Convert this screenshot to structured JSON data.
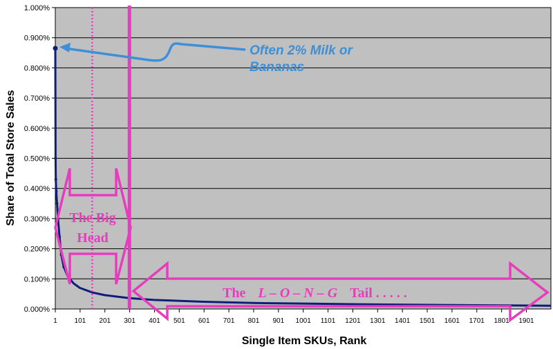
{
  "chart_data": {
    "type": "line",
    "title": "",
    "xlabel": "Single Item SKUs, Rank",
    "ylabel": "Share of Total Store Sales",
    "xlim": [
      1,
      2000
    ],
    "ylim": [
      0,
      1.0
    ],
    "y_tick_labels": [
      "0.000%",
      "0.100%",
      "0.200%",
      "0.300%",
      "0.400%",
      "0.500%",
      "0.600%",
      "0.700%",
      "0.800%",
      "0.900%",
      "1.000%"
    ],
    "y_tick_values": [
      0,
      0.1,
      0.2,
      0.3,
      0.4,
      0.5,
      0.6,
      0.7,
      0.8,
      0.9,
      1.0
    ],
    "x_tick_labels": [
      "1",
      "101",
      "201",
      "301",
      "401",
      "501",
      "601",
      "701",
      "801",
      "901",
      "1001",
      "1101",
      "1201",
      "1301",
      "1401",
      "1501",
      "1601",
      "1701",
      "1801",
      "1901"
    ],
    "x_tick_values": [
      1,
      101,
      201,
      301,
      401,
      501,
      601,
      701,
      801,
      901,
      1001,
      1101,
      1201,
      1301,
      1401,
      1501,
      1601,
      1701,
      1801,
      1901
    ],
    "grid": true,
    "series": [
      {
        "color": "#0d1e78",
        "x": [
          1,
          2,
          3,
          5,
          8,
          12,
          18,
          25,
          35,
          50,
          75,
          100,
          150,
          200,
          300,
          400,
          600,
          800,
          1000,
          1300,
          1600,
          2000
        ],
        "y": [
          0.865,
          0.5,
          0.43,
          0.39,
          0.35,
          0.3,
          0.24,
          0.18,
          0.14,
          0.11,
          0.085,
          0.07,
          0.055,
          0.046,
          0.036,
          0.03,
          0.024,
          0.02,
          0.018,
          0.015,
          0.013,
          0.011
        ]
      }
    ],
    "reference_lines": [
      {
        "x": 150,
        "style": "dotted",
        "color": "#e83cbf"
      },
      {
        "x": 300,
        "style": "solid",
        "color": "#e83cbf"
      }
    ],
    "annotations": {
      "milk_line1": "Often 2% Milk or",
      "milk_line2": "Bananas",
      "head_line1": "The Big",
      "head_line2": "Head",
      "tail_the": "The",
      "tail_long": "L – O – N – G",
      "tail_word": "Tail . . . . ."
    },
    "colors": {
      "plot_bg": "#c0c0c0",
      "line": "#0d1e78",
      "accent_pink": "#e83cbf",
      "accent_blue": "#3d8fd6"
    }
  }
}
